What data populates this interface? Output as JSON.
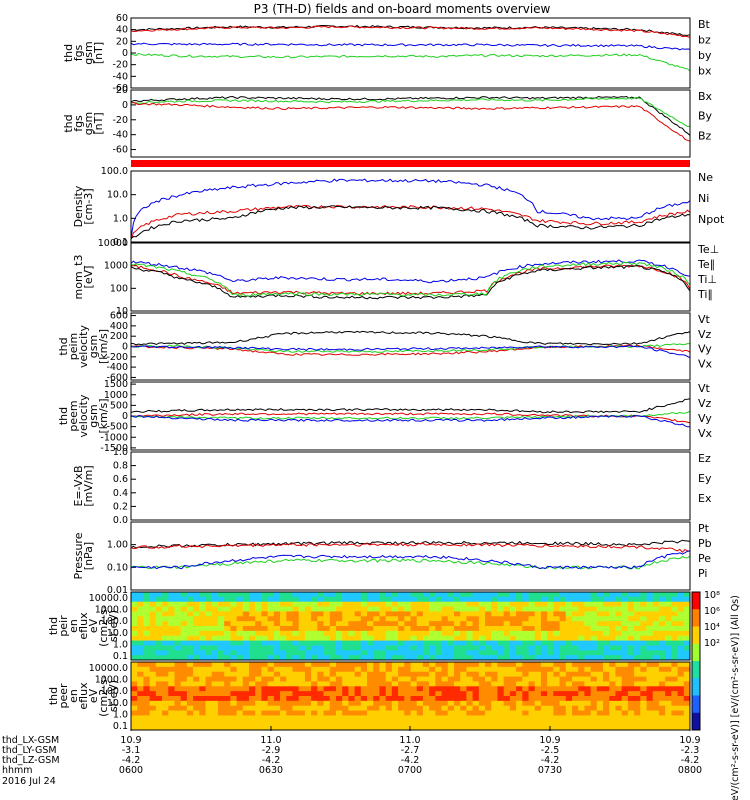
{
  "title": "P3 (TH-D) fields and on-board moments overview",
  "colors": {
    "black": "#000000",
    "red": "#e00000",
    "green": "#1ed01e",
    "blue": "#0000e6"
  },
  "chart_data": [
    {
      "type": "line",
      "ylabel": [
        "thd",
        "fgs",
        "gsm",
        "[nT]"
      ],
      "ylim": [
        -60,
        60
      ],
      "yticks": [
        "60",
        "40",
        "20",
        "0",
        "-20",
        "-40",
        "-60"
      ],
      "tickvals": [
        60,
        40,
        20,
        0,
        -20,
        -40,
        -60
      ],
      "log": false,
      "series": [
        {
          "name": "Bt",
          "color": "#000000",
          "values": [
            40,
            42,
            45,
            44,
            46,
            45,
            44,
            43,
            44,
            42,
            40,
            30
          ]
        },
        {
          "name": "bz",
          "color": "#e00000",
          "values": [
            38,
            41,
            44,
            43,
            45,
            44,
            43,
            42,
            43,
            41,
            38,
            28
          ]
        },
        {
          "name": "by",
          "color": "#1ed01e",
          "values": [
            -2,
            -5,
            -6,
            -7,
            -6,
            -5,
            -6,
            -4,
            -5,
            -4,
            -3,
            -30
          ]
        },
        {
          "name": "bx",
          "color": "#0000e6",
          "values": [
            16,
            15,
            15,
            15,
            14,
            14,
            14,
            14,
            13,
            13,
            12,
            5
          ]
        }
      ]
    },
    {
      "type": "line",
      "ylabel": [
        "thd",
        "fgs",
        "gsm",
        "[nT]"
      ],
      "ylim": [
        -70,
        20
      ],
      "yticks": [
        "20",
        "0",
        "-20",
        "-40",
        "-60"
      ],
      "tickvals": [
        20,
        0,
        -20,
        -40,
        -60
      ],
      "log": false,
      "series": [
        {
          "name": "Bx",
          "color": "#000000",
          "values": [
            5,
            8,
            10,
            9,
            8,
            8,
            9,
            10,
            9,
            10,
            10,
            -40
          ]
        },
        {
          "name": "By",
          "color": "#1ed01e",
          "values": [
            3,
            5,
            6,
            5,
            4,
            5,
            6,
            7,
            6,
            8,
            9,
            -30
          ]
        },
        {
          "name": "Bz",
          "color": "#e00000",
          "values": [
            2,
            0,
            -3,
            -5,
            -4,
            -3,
            -4,
            -5,
            -4,
            -3,
            -2,
            -50
          ]
        }
      ]
    },
    {
      "type": "line",
      "ylabel": [
        "Density",
        "[cm-3]"
      ],
      "ylim": [
        0.1,
        100
      ],
      "yticks": [
        "100.0",
        "10.0",
        "1.0",
        "0.1"
      ],
      "tickvals": [
        100,
        10,
        1,
        0.1
      ],
      "log": true,
      "series": [
        {
          "name": "Ne",
          "color": "#e00000",
          "values": [
            0.15,
            1.5,
            2.0,
            3.0,
            3.2,
            3.0,
            3.0,
            2.5,
            0.8,
            0.6,
            0.7,
            2
          ]
        },
        {
          "name": "Ni",
          "color": "#000000",
          "values": [
            0.12,
            0.8,
            1.0,
            2.8,
            3.0,
            2.8,
            2.8,
            2.0,
            0.5,
            0.4,
            0.5,
            1.5
          ]
        },
        {
          "name": "Npot",
          "color": "#0000e6",
          "values": [
            0.15,
            10,
            20,
            30,
            40,
            40,
            38,
            25,
            2,
            1,
            1,
            5
          ]
        }
      ]
    },
    {
      "type": "line",
      "ylabel": [
        "mom_t3",
        "[eV]"
      ],
      "ylim": [
        10,
        10000
      ],
      "yticks": [
        "10000",
        "1000",
        "100",
        "10"
      ],
      "tickvals": [
        10000,
        1000,
        100,
        10
      ],
      "log": true,
      "series": [
        {
          "name": "Te⊥",
          "color": "#e00000",
          "values": [
            1000,
            300,
            60,
            70,
            60,
            60,
            60,
            80,
            700,
            900,
            1000,
            100
          ]
        },
        {
          "name": "Te∥",
          "color": "#000000",
          "values": [
            800,
            250,
            40,
            50,
            40,
            40,
            40,
            50,
            600,
            800,
            900,
            80
          ]
        },
        {
          "name": "Ti⊥",
          "color": "#0000e6",
          "values": [
            1500,
            800,
            200,
            300,
            250,
            250,
            200,
            300,
            1200,
            1500,
            1600,
            300
          ]
        },
        {
          "name": "Ti∥",
          "color": "#1ed01e",
          "values": [
            1200,
            500,
            50,
            60,
            55,
            55,
            50,
            60,
            900,
            1200,
            1300,
            150
          ]
        }
      ]
    },
    {
      "type": "line",
      "ylabel": [
        "thd",
        "peim",
        "velocity",
        "gsm",
        "[km/s]"
      ],
      "ylim": [
        -650,
        650
      ],
      "yticks": [
        "600",
        "400",
        "200",
        "0",
        "-200",
        "-400",
        "-600"
      ],
      "tickvals": [
        600,
        400,
        200,
        0,
        -200,
        -400,
        -600
      ],
      "log": false,
      "series": [
        {
          "name": "Vt",
          "color": "#000000",
          "values": [
            50,
            60,
            80,
            250,
            280,
            270,
            260,
            200,
            60,
            50,
            60,
            300
          ]
        },
        {
          "name": "Vz",
          "color": "#e00000",
          "values": [
            0,
            -20,
            -50,
            -150,
            -160,
            -150,
            -140,
            -100,
            -20,
            0,
            10,
            -100
          ]
        },
        {
          "name": "Vy",
          "color": "#1ed01e",
          "values": [
            0,
            10,
            -30,
            -100,
            -90,
            -100,
            -80,
            -60,
            -10,
            0,
            0,
            50
          ]
        },
        {
          "name": "Vx",
          "color": "#0000e6",
          "values": [
            0,
            -10,
            -20,
            -50,
            -60,
            -50,
            -40,
            -30,
            0,
            -10,
            0,
            -200
          ]
        }
      ]
    },
    {
      "type": "line",
      "ylabel": [
        "thd",
        "peem",
        "velocity",
        "gsm",
        "[km/s]"
      ],
      "ylim": [
        -1600,
        1600
      ],
      "yticks": [
        "1500",
        "1000",
        "500",
        "0",
        "-500",
        "-1000",
        "-1500"
      ],
      "tickvals": [
        1500,
        1000,
        500,
        0,
        -500,
        -1000,
        -1500
      ],
      "log": false,
      "series": [
        {
          "name": "Vt",
          "color": "#000000",
          "values": [
            200,
            250,
            300,
            300,
            300,
            300,
            300,
            300,
            200,
            200,
            200,
            800
          ]
        },
        {
          "name": "Vz",
          "color": "#e00000",
          "values": [
            0,
            50,
            100,
            100,
            100,
            100,
            100,
            100,
            50,
            0,
            0,
            -300
          ]
        },
        {
          "name": "Vy",
          "color": "#1ed01e",
          "values": [
            0,
            -50,
            -100,
            -100,
            -100,
            -100,
            -100,
            -100,
            -50,
            0,
            0,
            200
          ]
        },
        {
          "name": "Vx",
          "color": "#0000e6",
          "values": [
            0,
            -100,
            -200,
            -200,
            -200,
            -200,
            -200,
            -200,
            -100,
            -50,
            0,
            -500
          ]
        }
      ]
    },
    {
      "type": "line",
      "ylabel": [
        "E=-VxB",
        "[mV/m]"
      ],
      "ylim": [
        0,
        1
      ],
      "yticks": [
        "1.0",
        "0.8",
        "0.6",
        "0.4",
        "0.2",
        "0.0"
      ],
      "tickvals": [
        1,
        0.8,
        0.6,
        0.4,
        0.2,
        0
      ],
      "log": false,
      "series": [
        {
          "name": "Ez",
          "color": "#e00000",
          "values": []
        },
        {
          "name": "Ey",
          "color": "#1ed01e",
          "values": []
        },
        {
          "name": "Ex",
          "color": "#0000e6",
          "values": []
        }
      ]
    },
    {
      "type": "line",
      "ylabel": [
        "Pressure",
        "[nPa]"
      ],
      "ylim": [
        0.01,
        10
      ],
      "yticks": [
        "1.00",
        "0.10",
        "0.01"
      ],
      "tickvals": [
        1,
        0.1,
        0.01
      ],
      "log": true,
      "series": [
        {
          "name": "Pt",
          "color": "#000000",
          "values": [
            0.8,
            0.9,
            1.0,
            1.1,
            1.2,
            1.2,
            1.2,
            1.2,
            1.2,
            1.1,
            1.0,
            1.5
          ]
        },
        {
          "name": "Pb",
          "color": "#e00000",
          "values": [
            0.75,
            0.85,
            0.9,
            1.0,
            1.0,
            1.0,
            1.0,
            1.0,
            0.9,
            0.85,
            0.8,
            0.5
          ]
        },
        {
          "name": "Pe",
          "color": "#1ed01e",
          "values": [
            0.1,
            0.1,
            0.15,
            0.2,
            0.2,
            0.2,
            0.2,
            0.15,
            0.1,
            0.1,
            0.1,
            0.3
          ]
        },
        {
          "name": "Pi",
          "color": "#0000e6",
          "values": [
            0.1,
            0.1,
            0.2,
            0.3,
            0.3,
            0.3,
            0.3,
            0.2,
            0.1,
            0.1,
            0.1,
            0.5
          ]
        }
      ]
    },
    {
      "type": "heatmap",
      "ylabel": [
        "thd",
        "peir",
        "en",
        "eflux",
        "eV",
        "(cm2-s-",
        "sr-eV)"
      ],
      "yticks": [
        "10000.0",
        "1000.0",
        "100.0",
        "10.0",
        "1.0",
        "0.1"
      ]
    },
    {
      "type": "heatmap",
      "ylabel": [
        "thd",
        "peer",
        "en",
        "eflux",
        "eV",
        "(cm2-s-",
        "sr-eV)"
      ],
      "yticks": [
        "10000.0",
        "1000.0",
        "100.0",
        "10.0",
        "1.0",
        "0.1"
      ]
    }
  ],
  "colorbar": {
    "ticks": [
      "10⁸",
      "10⁶",
      "10⁴",
      "10²"
    ],
    "label": "[eV/(cm²-s-sr-eV)] [eV/(cm²-s-sr-eV)] (All Qs)"
  },
  "xaxis": {
    "rows": [
      {
        "label": "thd_LX-GSM",
        "values": [
          "10.9",
          "11.0",
          "11.0",
          "10.9",
          "10.9"
        ]
      },
      {
        "label": "thd_LY-GSM",
        "values": [
          "-3.1",
          "-2.9",
          "-2.7",
          "-2.5",
          "-2.3"
        ]
      },
      {
        "label": "thd_LZ-GSM",
        "values": [
          "-4.2",
          "-4.2",
          "-4.2",
          "-4.2",
          "-4.2"
        ]
      },
      {
        "label": "hhmm",
        "values": [
          "0600",
          "0630",
          "0700",
          "0730",
          "0800"
        ]
      }
    ],
    "date": "2016 Jul 24"
  }
}
